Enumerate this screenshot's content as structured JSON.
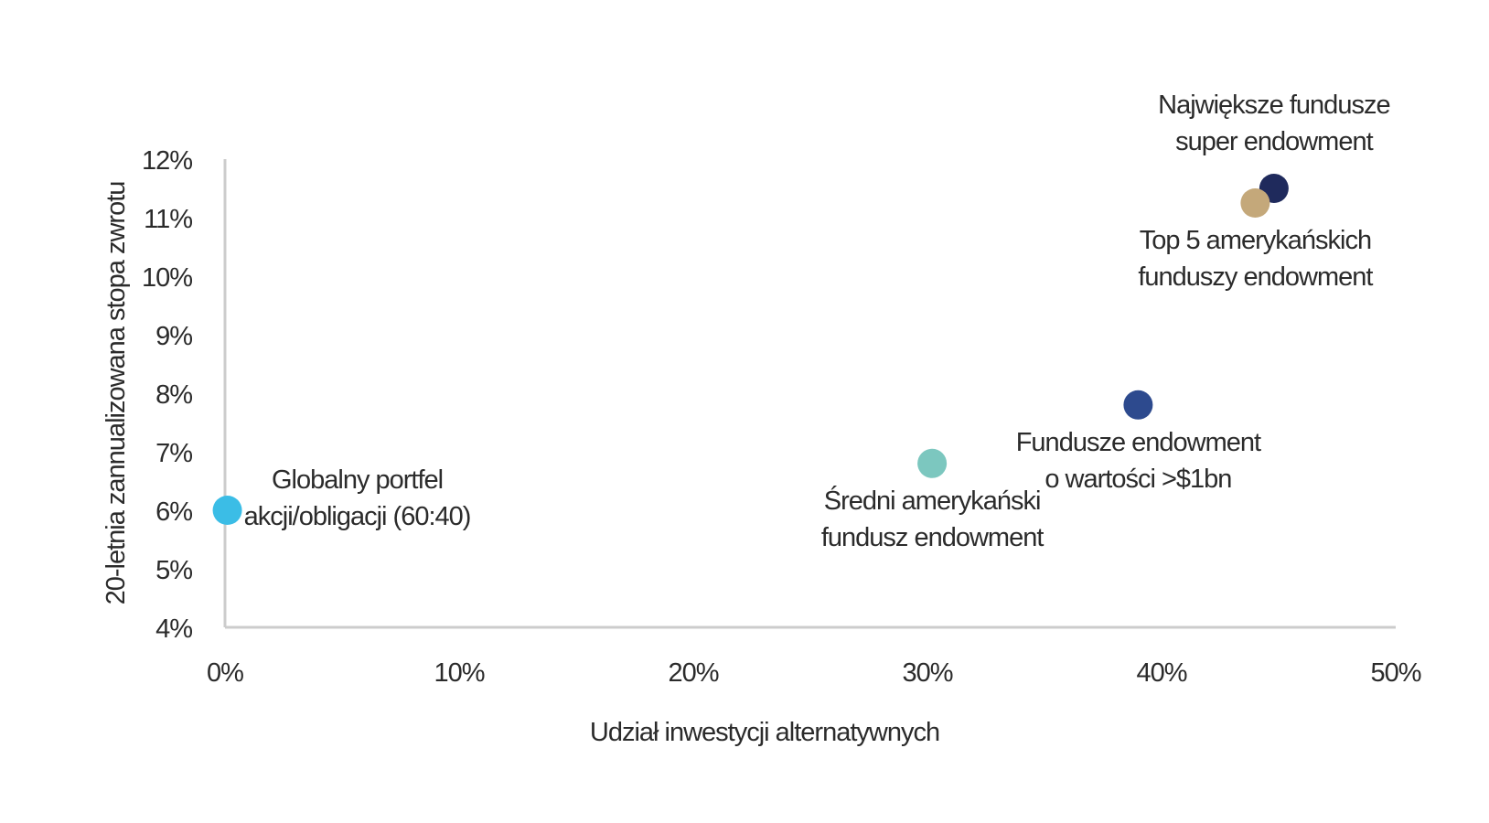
{
  "chart_data": {
    "type": "scatter",
    "xlabel": "Udział inwestycji alternatywnych",
    "ylabel": "20-letnia zannualizowana stopa zwrotu",
    "xlim": [
      0,
      50
    ],
    "ylim": [
      4,
      12
    ],
    "x_ticks": [
      0,
      10,
      20,
      30,
      40,
      50
    ],
    "x_tick_labels": [
      "0%",
      "10%",
      "20%",
      "30%",
      "40%",
      "50%"
    ],
    "y_ticks": [
      4,
      5,
      6,
      7,
      8,
      9,
      10,
      11,
      12
    ],
    "y_tick_labels": [
      "4%",
      "5%",
      "6%",
      "7%",
      "8%",
      "9%",
      "10%",
      "11%",
      "12%"
    ],
    "grid": false,
    "points": [
      {
        "label_lines": [
          "Globalny portfel",
          "akcji/obligacji (60:40)"
        ],
        "x": 0.1,
        "y": 6.0,
        "color": "#3bbde6",
        "label_pos": "right"
      },
      {
        "label_lines": [
          "Średni amerykański",
          "fundusz endowment"
        ],
        "x": 30.2,
        "y": 6.8,
        "color": "#7cc7bf",
        "label_pos": "below"
      },
      {
        "label_lines": [
          "Fundusze endowment",
          "o wartości >$1bn"
        ],
        "x": 39.0,
        "y": 7.8,
        "color": "#2d4a8e",
        "label_pos": "below"
      },
      {
        "label_lines": [
          "Największe fundusze",
          "super endowment"
        ],
        "x": 44.8,
        "y": 11.5,
        "color": "#1f2a5c",
        "label_pos": "above"
      },
      {
        "label_lines": [
          "Top 5 amerykańskich",
          "funduszy endowment"
        ],
        "x": 44.0,
        "y": 11.25,
        "color": "#c4a87a",
        "label_pos": "below"
      }
    ],
    "axis_color": "#cccccc"
  }
}
